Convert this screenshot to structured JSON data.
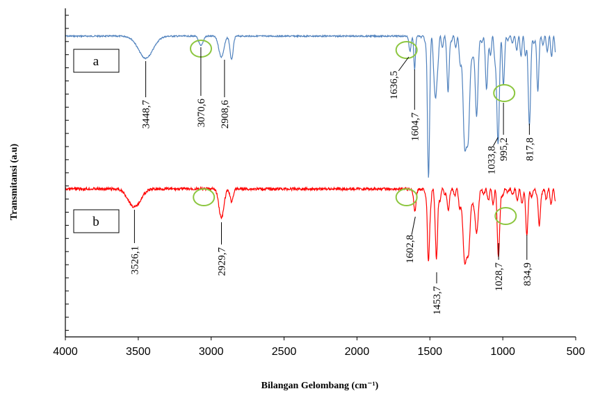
{
  "chart_data": {
    "type": "line",
    "title": "",
    "xlabel": "Bilangan Gelombang (cm⁻¹)",
    "ylabel": "Transmitansi (a.u)",
    "xlim": [
      4000,
      500
    ],
    "x_reversed": true,
    "x_ticks": [
      4000,
      3500,
      3000,
      2500,
      2000,
      1500,
      1000,
      500
    ],
    "x_tick_labels": [
      "4000",
      "3500",
      "3000",
      "2500",
      "2000",
      "1500",
      "1000",
      "500"
    ],
    "y_ticks_labeled": false,
    "grid": false,
    "legend": "none",
    "panels": [
      {
        "label": "a",
        "color": "#4f81bd",
        "peaks": [
          {
            "x": 3448.7,
            "label": "3448,7"
          },
          {
            "x": 3070.6,
            "label": "3070,6"
          },
          {
            "x": 2908.6,
            "label": "2908,6"
          },
          {
            "x": 1636.5,
            "label": "1636,5"
          },
          {
            "x": 1604.7,
            "label": "1604,7"
          },
          {
            "x": 1033.8,
            "label": "1033,8"
          },
          {
            "x": 995.2,
            "label": "995,2"
          },
          {
            "x": 817.8,
            "label": "817,8"
          }
        ],
        "highlighted_regions": [
          3070,
          1636,
          995
        ]
      },
      {
        "label": "b",
        "color": "#ff0000",
        "peaks": [
          {
            "x": 3526.1,
            "label": "3526,1"
          },
          {
            "x": 2929.7,
            "label": "2929,7"
          },
          {
            "x": 1602.8,
            "label": "1602,8"
          },
          {
            "x": 1453.7,
            "label": "1453,7"
          },
          {
            "x": 1028.7,
            "label": "1028,7"
          },
          {
            "x": 834.9,
            "label": "834,9"
          }
        ],
        "highlighted_regions": [
          3050,
          1660,
          980
        ]
      }
    ],
    "highlight_color": "#8cc63f"
  }
}
